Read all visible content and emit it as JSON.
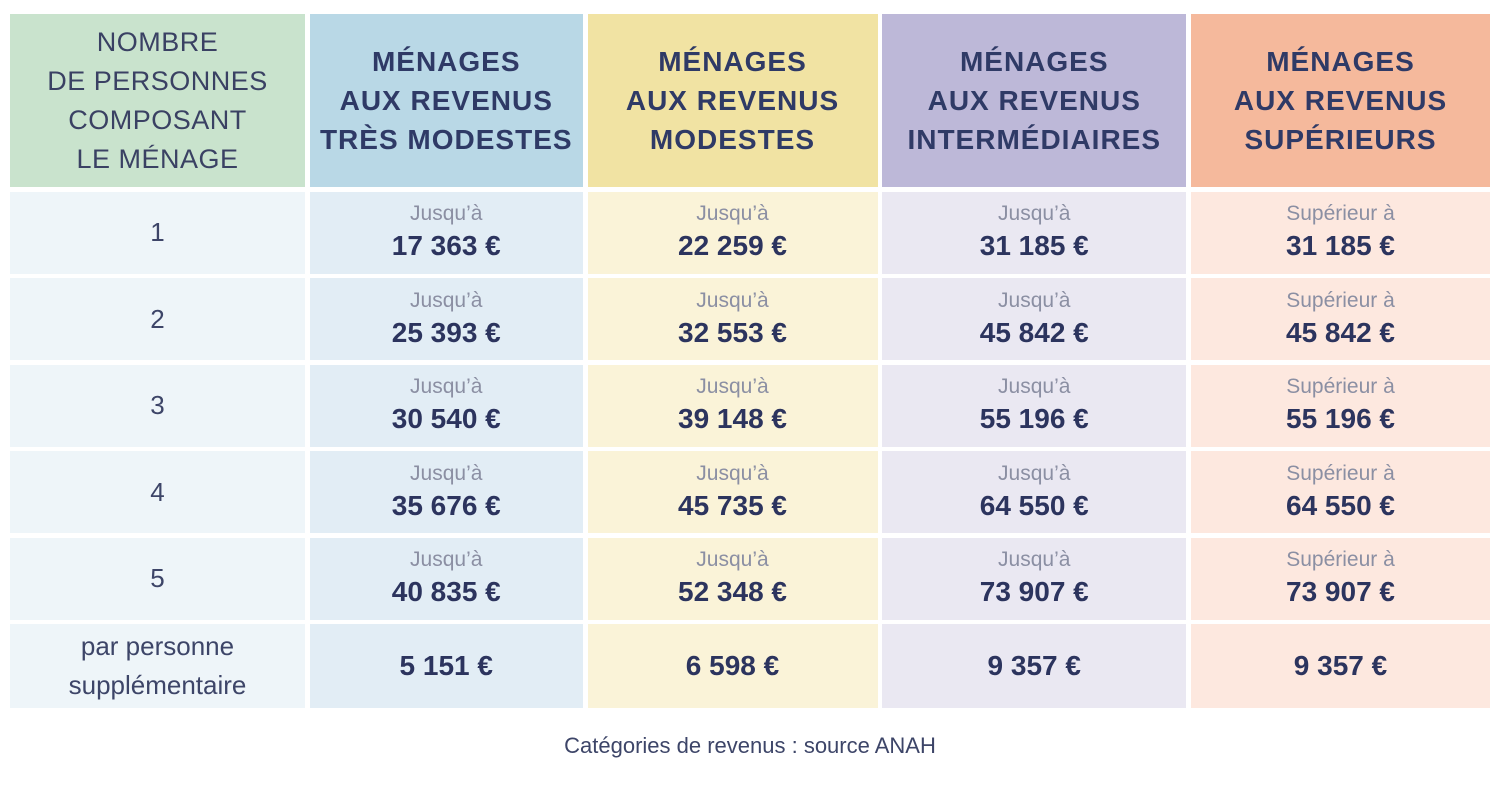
{
  "header": {
    "first_col": [
      "NOMBRE",
      "DE PERSONNES",
      "COMPOSANT",
      "LE MÉNAGE"
    ],
    "columns": [
      [
        "MÉNAGES",
        "AUX REVENUS",
        "TRÈS MODESTES"
      ],
      [
        "MÉNAGES",
        "AUX REVENUS",
        "MODESTES"
      ],
      [
        "MÉNAGES",
        "AUX REVENUS",
        "INTERMÉDIAIRES"
      ],
      [
        "MÉNAGES",
        "AUX REVENUS",
        "SUPÉRIEURS"
      ]
    ]
  },
  "rows": [
    {
      "label": "1",
      "cells": [
        {
          "prefix": "Jusqu’à",
          "amount": "17 363 €"
        },
        {
          "prefix": "Jusqu’à",
          "amount": "22 259 €"
        },
        {
          "prefix": "Jusqu’à",
          "amount": "31 185 €"
        },
        {
          "prefix": "Supérieur à",
          "amount": "31 185 €"
        }
      ]
    },
    {
      "label": "2",
      "cells": [
        {
          "prefix": "Jusqu’à",
          "amount": "25 393 €"
        },
        {
          "prefix": "Jusqu’à",
          "amount": "32 553 €"
        },
        {
          "prefix": "Jusqu’à",
          "amount": "45 842 €"
        },
        {
          "prefix": "Supérieur à",
          "amount": "45 842 €"
        }
      ]
    },
    {
      "label": "3",
      "cells": [
        {
          "prefix": "Jusqu’à",
          "amount": "30 540 €"
        },
        {
          "prefix": "Jusqu’à",
          "amount": "39 148 €"
        },
        {
          "prefix": "Jusqu’à",
          "amount": "55 196 €"
        },
        {
          "prefix": "Supérieur à",
          "amount": "55 196 €"
        }
      ]
    },
    {
      "label": "4",
      "cells": [
        {
          "prefix": "Jusqu’à",
          "amount": "35 676 €"
        },
        {
          "prefix": "Jusqu’à",
          "amount": "45 735 €"
        },
        {
          "prefix": "Jusqu’à",
          "amount": "64 550 €"
        },
        {
          "prefix": "Supérieur à",
          "amount": "64 550 €"
        }
      ]
    },
    {
      "label": "5",
      "cells": [
        {
          "prefix": "Jusqu’à",
          "amount": "40 835 €"
        },
        {
          "prefix": "Jusqu’à",
          "amount": "52 348 €"
        },
        {
          "prefix": "Jusqu’à",
          "amount": "73 907 €"
        },
        {
          "prefix": "Supérieur à",
          "amount": "73 907 €"
        }
      ]
    }
  ],
  "extra_row": {
    "label": [
      "par personne",
      "supplémentaire"
    ],
    "amounts": [
      "5 151 €",
      "6 598 €",
      "9 357 €",
      "9 357 €"
    ]
  },
  "source": "Catégories de revenus : source ANAH",
  "colors": {
    "text": "#2d3561",
    "header_persons": "#c9e3cd",
    "header_tres_modestes": "#b9d8e6",
    "header_modestes": "#f1e3a3",
    "header_intermediaires": "#bdb8d8",
    "header_superieurs": "#f5b99c"
  }
}
